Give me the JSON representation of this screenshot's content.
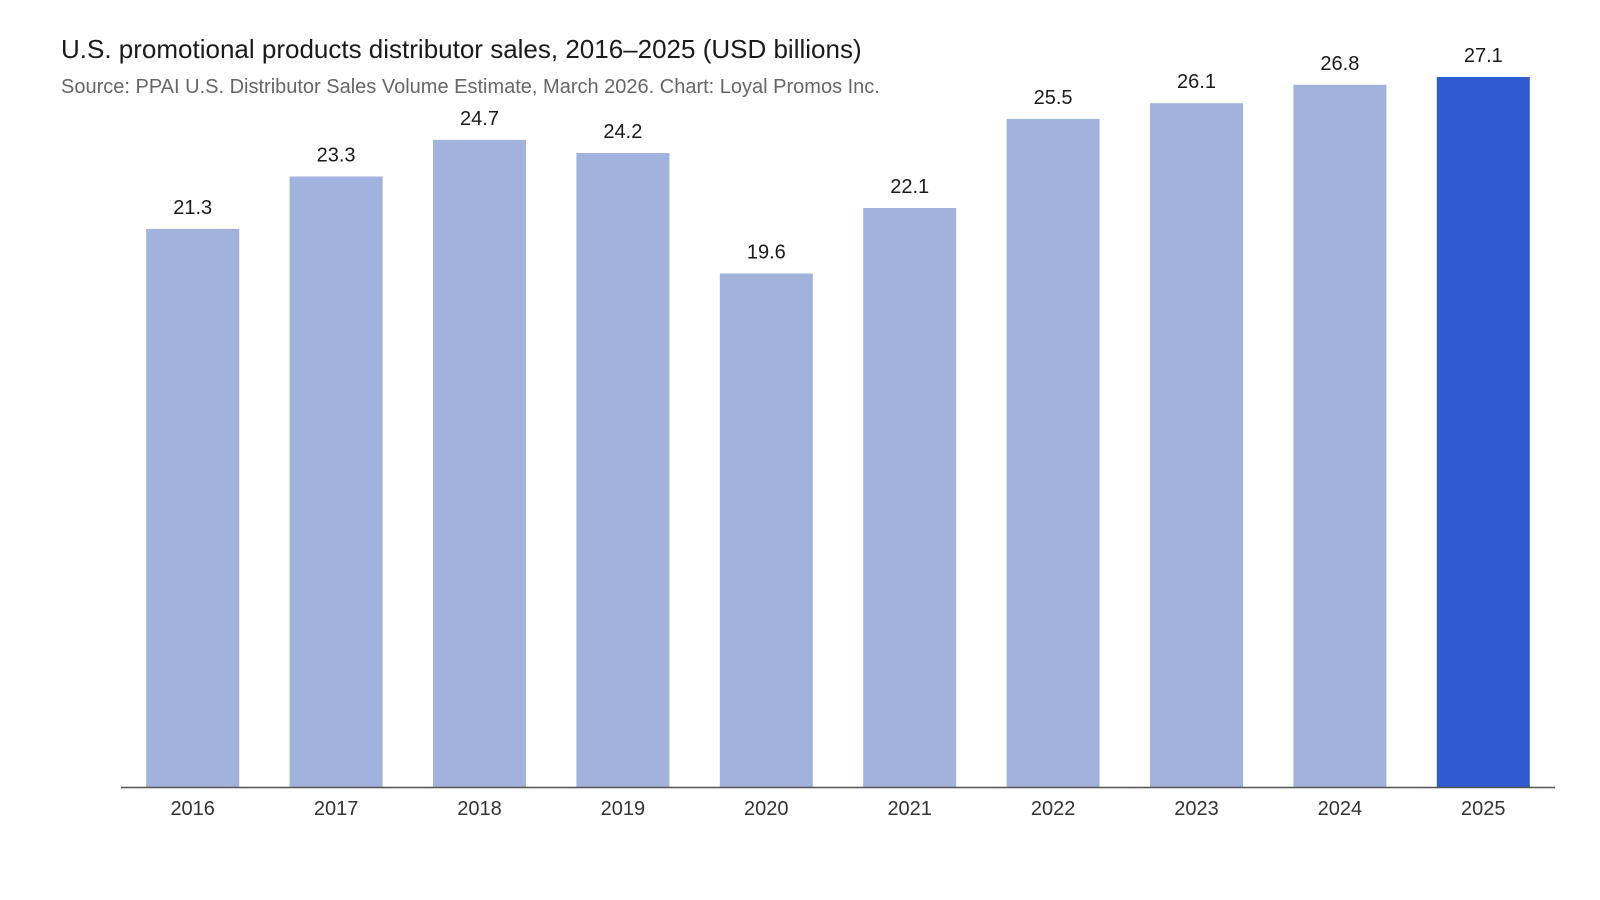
{
  "chart_data": {
    "type": "bar",
    "title": "U.S. promotional products distributor sales, 2016–2025 (USD billions)",
    "subtitle": "Source: PPAI U.S. Distributor Sales Volume Estimate, March 2026. Chart: Loyal Promos Inc.",
    "categories": [
      "2016",
      "2017",
      "2018",
      "2019",
      "2020",
      "2021",
      "2022",
      "2023",
      "2024",
      "2025"
    ],
    "values": [
      21.3,
      23.3,
      24.7,
      24.2,
      19.6,
      22.1,
      25.5,
      26.1,
      26.8,
      27.1
    ],
    "ylim": [
      0,
      30
    ],
    "grid": false,
    "data_labels": true,
    "colors": {
      "bar": "#a1b2dc",
      "highlight": "#2e5bd0",
      "axis": "#555555"
    },
    "highlight_category": "2025"
  }
}
